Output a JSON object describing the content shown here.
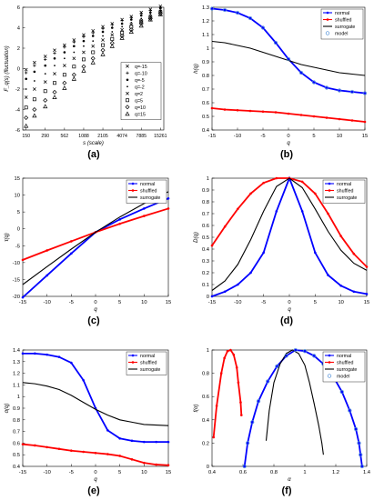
{
  "chart_data": [
    {
      "panel": "(a)",
      "type": "scatter",
      "ylabel": "F_q(s) (fluctuation)",
      "xlabel": "s (scale)",
      "x_scale": "log",
      "x": [
        150,
        200,
        290,
        400,
        562,
        780,
        1088,
        1500,
        2105,
        2900,
        4074,
        5600,
        7885,
        10800,
        15261
      ],
      "xticks": [
        "150",
        "290",
        "562",
        "1088",
        "2105",
        "4074",
        "7885",
        "15261"
      ],
      "ylim": [
        -6,
        6
      ],
      "yticks": [
        -6,
        -4,
        -2,
        0,
        2,
        4,
        6
      ],
      "legend_position": "right",
      "series": [
        {
          "name": "q=-15",
          "marker": "x",
          "color": "#000000",
          "values": [
            -0.1,
            0.6,
            1.2,
            1.8,
            2.3,
            2.8,
            3.3,
            3.7,
            4.1,
            4.4,
            4.8,
            5.1,
            5.5,
            5.8,
            6.1
          ]
        },
        {
          "name": "q=-10",
          "marker": "+",
          "color": "#000000",
          "values": [
            -0.4,
            0.3,
            0.9,
            1.5,
            2.1,
            2.6,
            3.1,
            3.5,
            3.9,
            4.3,
            4.7,
            5.0,
            5.4,
            5.7,
            6.0
          ]
        },
        {
          "name": "q=-5",
          "marker": "*",
          "color": "#000000",
          "values": [
            -1.0,
            -0.3,
            0.3,
            1.0,
            1.6,
            2.2,
            2.7,
            3.2,
            3.6,
            4.0,
            4.4,
            4.8,
            5.2,
            5.5,
            5.9
          ]
        },
        {
          "name": "q=-2",
          "marker": ".",
          "color": "#000000",
          "values": [
            -2.0,
            -1.2,
            -0.5,
            0.3,
            1.0,
            1.6,
            2.2,
            2.7,
            3.2,
            3.6,
            4.1,
            4.5,
            4.9,
            5.3,
            5.7
          ]
        },
        {
          "name": "q=2",
          "marker": "x",
          "color": "#000000",
          "values": [
            -2.8,
            -2.0,
            -1.3,
            -0.5,
            0.3,
            1.0,
            1.6,
            2.2,
            2.8,
            3.3,
            3.8,
            4.3,
            4.7,
            5.1,
            5.6
          ]
        },
        {
          "name": "q=5",
          "marker": "s",
          "color": "#000000",
          "values": [
            -3.8,
            -3.0,
            -2.2,
            -1.4,
            -0.6,
            0.2,
            0.9,
            1.6,
            2.3,
            2.9,
            3.5,
            4.1,
            4.6,
            5.0,
            5.5
          ]
        },
        {
          "name": "q=10",
          "marker": "d",
          "color": "#000000",
          "values": [
            -4.8,
            -4.0,
            -3.1,
            -2.3,
            -1.4,
            -0.6,
            0.2,
            1.0,
            1.8,
            2.5,
            3.2,
            3.8,
            4.4,
            4.9,
            5.4
          ]
        },
        {
          "name": "q=15",
          "marker": "^",
          "color": "#000000",
          "values": [
            -5.6,
            -4.6,
            -3.7,
            -2.8,
            -1.9,
            -1.0,
            -0.2,
            0.6,
            1.4,
            2.2,
            3.0,
            3.6,
            4.2,
            4.8,
            5.3
          ]
        }
      ]
    },
    {
      "panel": "(b)",
      "type": "line",
      "ylabel": "h(q)",
      "xlabel": "q",
      "xlim": [
        -15,
        15
      ],
      "ylim": [
        0.4,
        1.3
      ],
      "xticks": [
        -15,
        -10,
        -5,
        0,
        5,
        10,
        15
      ],
      "yticks": [
        0.4,
        0.5,
        0.6,
        0.7,
        0.8,
        0.9,
        1,
        1.1,
        1.2,
        1.3
      ],
      "legend_position": "top-right",
      "x": [
        -15,
        -12.5,
        -10,
        -7.5,
        -5,
        -2.5,
        0,
        2.5,
        5,
        7.5,
        10,
        12.5,
        15
      ],
      "series": [
        {
          "name": "normal",
          "color": "#0000ff",
          "marker": "*",
          "values": [
            1.29,
            1.28,
            1.26,
            1.22,
            1.15,
            1.04,
            0.92,
            0.82,
            0.75,
            0.71,
            0.69,
            0.68,
            0.67
          ]
        },
        {
          "name": "shuffled",
          "color": "#ff0000",
          "marker": "*",
          "values": [
            0.56,
            0.55,
            0.545,
            0.54,
            0.535,
            0.53,
            0.52,
            0.51,
            0.5,
            0.49,
            0.48,
            0.47,
            0.46
          ]
        },
        {
          "name": "surrogate",
          "color": "#000000",
          "marker": "",
          "values": [
            1.05,
            1.04,
            1.02,
            1.0,
            0.97,
            0.94,
            0.91,
            0.88,
            0.86,
            0.84,
            0.82,
            0.81,
            0.8
          ]
        },
        {
          "name": "model",
          "color": "#4f8fd8",
          "marker": "o",
          "values": [
            1.29,
            1.28,
            1.26,
            1.22,
            1.15,
            1.04,
            0.92,
            0.82,
            0.75,
            0.71,
            0.69,
            0.68,
            0.67
          ]
        }
      ]
    },
    {
      "panel": "(c)",
      "type": "line",
      "ylabel": "τ(q)",
      "xlabel": "q",
      "xlim": [
        -15,
        15
      ],
      "ylim": [
        -20,
        15
      ],
      "xticks": [
        -15,
        -10,
        -5,
        0,
        5,
        10,
        15
      ],
      "yticks": [
        -20,
        -15,
        -10,
        -5,
        0,
        5,
        10,
        15
      ],
      "legend_position": "top-right",
      "x": [
        -15,
        -10,
        -5,
        0,
        5,
        10,
        15
      ],
      "series": [
        {
          "name": "normal",
          "color": "#0000ff",
          "marker": "*",
          "values": [
            -20.3,
            -13.8,
            -7.3,
            -1.0,
            2.8,
            6.0,
            9.0
          ]
        },
        {
          "name": "shuffled",
          "color": "#ff0000",
          "marker": "*",
          "values": [
            -9.2,
            -6.4,
            -3.7,
            -1.0,
            1.5,
            3.8,
            6.0
          ]
        },
        {
          "name": "surrogate",
          "color": "#000000",
          "marker": "",
          "values": [
            -16.5,
            -11.2,
            -6.0,
            -1.0,
            3.5,
            7.5,
            11.0
          ]
        }
      ]
    },
    {
      "panel": "(d)",
      "type": "line",
      "ylabel": "D(q)",
      "xlabel": "q",
      "xlim": [
        -15,
        15
      ],
      "ylim": [
        0,
        1
      ],
      "xticks": [
        -15,
        -10,
        -5,
        0,
        5,
        10,
        15
      ],
      "yticks": [
        0,
        0.1,
        0.2,
        0.3,
        0.4,
        0.5,
        0.6,
        0.7,
        0.8,
        0.9,
        1
      ],
      "legend_position": "top-right",
      "x": [
        -15,
        -12.5,
        -10,
        -7.5,
        -5,
        -2.5,
        0,
        2.5,
        5,
        7.5,
        10,
        12.5,
        15
      ],
      "series": [
        {
          "name": "normal",
          "color": "#0000ff",
          "marker": "*",
          "values": [
            0.0,
            0.04,
            0.1,
            0.2,
            0.37,
            0.72,
            1.0,
            0.72,
            0.37,
            0.18,
            0.09,
            0.04,
            0.02
          ]
        },
        {
          "name": "shuffled",
          "color": "#ff0000",
          "marker": "*",
          "values": [
            0.43,
            0.59,
            0.74,
            0.87,
            0.96,
            1.0,
            1.0,
            0.97,
            0.87,
            0.7,
            0.51,
            0.36,
            0.25
          ]
        },
        {
          "name": "surrogate",
          "color": "#000000",
          "marker": "",
          "values": [
            0.05,
            0.13,
            0.27,
            0.48,
            0.72,
            0.93,
            1.0,
            0.92,
            0.74,
            0.55,
            0.39,
            0.28,
            0.22
          ]
        }
      ]
    },
    {
      "panel": "(e)",
      "type": "line",
      "ylabel": "α(q)",
      "xlabel": "q",
      "xlim": [
        -15,
        15
      ],
      "ylim": [
        0.4,
        1.4
      ],
      "xticks": [
        -15,
        -10,
        -5,
        0,
        5,
        10,
        15
      ],
      "yticks": [
        0.4,
        0.5,
        0.6,
        0.7,
        0.8,
        0.9,
        1,
        1.1,
        1.2,
        1.3,
        1.4
      ],
      "legend_position": "top-right",
      "x": [
        -15,
        -12.5,
        -10,
        -7.5,
        -5,
        -2.5,
        0,
        2.5,
        5,
        7.5,
        10,
        12.5,
        15
      ],
      "series": [
        {
          "name": "normal",
          "color": "#0000ff",
          "marker": "*",
          "values": [
            1.37,
            1.37,
            1.36,
            1.34,
            1.29,
            1.14,
            0.9,
            0.71,
            0.64,
            0.62,
            0.61,
            0.61,
            0.61
          ]
        },
        {
          "name": "shuffled",
          "color": "#ff0000",
          "marker": "*",
          "values": [
            0.59,
            0.58,
            0.565,
            0.55,
            0.535,
            0.525,
            0.515,
            0.505,
            0.49,
            0.46,
            0.43,
            0.415,
            0.41
          ]
        },
        {
          "name": "surrogate",
          "color": "#000000",
          "marker": "",
          "values": [
            1.12,
            1.11,
            1.09,
            1.06,
            1.01,
            0.95,
            0.89,
            0.84,
            0.8,
            0.78,
            0.76,
            0.755,
            0.75
          ]
        }
      ]
    },
    {
      "panel": "(f)",
      "type": "line",
      "ylabel": "f(α)",
      "xlabel": "α",
      "xlim": [
        0.4,
        1.4
      ],
      "ylim": [
        0,
        1
      ],
      "xticks": [
        0.4,
        0.6,
        0.8,
        1,
        1.2,
        1.4
      ],
      "yticks": [
        0,
        0.2,
        0.4,
        0.6,
        0.8,
        1
      ],
      "legend_position": "top-right",
      "series": [
        {
          "name": "normal",
          "color": "#0000ff",
          "marker": "*",
          "x": [
            0.61,
            0.63,
            0.66,
            0.7,
            0.76,
            0.82,
            0.88,
            0.94,
            1.0,
            1.06,
            1.12,
            1.18,
            1.24,
            1.29,
            1.33,
            1.35,
            1.36,
            1.37
          ],
          "values": [
            0.0,
            0.2,
            0.38,
            0.56,
            0.73,
            0.86,
            0.95,
            1.0,
            0.99,
            0.95,
            0.88,
            0.78,
            0.64,
            0.48,
            0.32,
            0.2,
            0.1,
            0.0
          ]
        },
        {
          "name": "shuffled",
          "color": "#ff0000",
          "marker": "*",
          "x": [
            0.41,
            0.43,
            0.46,
            0.48,
            0.5,
            0.52,
            0.54,
            0.56,
            0.57,
            0.585,
            0.59
          ],
          "values": [
            0.25,
            0.52,
            0.8,
            0.93,
            0.99,
            1.0,
            0.96,
            0.85,
            0.72,
            0.55,
            0.44
          ]
        },
        {
          "name": "surrogate",
          "color": "#000000",
          "marker": "",
          "x": [
            0.75,
            0.77,
            0.8,
            0.84,
            0.88,
            0.92,
            0.96,
            1.0,
            1.03,
            1.06,
            1.09,
            1.11,
            1.12
          ],
          "values": [
            0.22,
            0.48,
            0.72,
            0.88,
            0.97,
            1.0,
            0.97,
            0.87,
            0.72,
            0.54,
            0.35,
            0.2,
            0.1
          ]
        },
        {
          "name": "model",
          "color": "#4f8fd8",
          "marker": "o",
          "x": [
            0.61,
            0.63,
            0.66,
            0.7,
            0.76,
            0.82,
            0.88,
            0.94,
            1.0,
            1.06,
            1.12,
            1.18,
            1.24,
            1.29,
            1.33,
            1.35,
            1.36,
            1.37
          ],
          "values": [
            0.0,
            0.2,
            0.38,
            0.56,
            0.73,
            0.86,
            0.95,
            1.0,
            0.99,
            0.95,
            0.88,
            0.78,
            0.64,
            0.48,
            0.32,
            0.2,
            0.1,
            0.0
          ]
        }
      ]
    }
  ]
}
